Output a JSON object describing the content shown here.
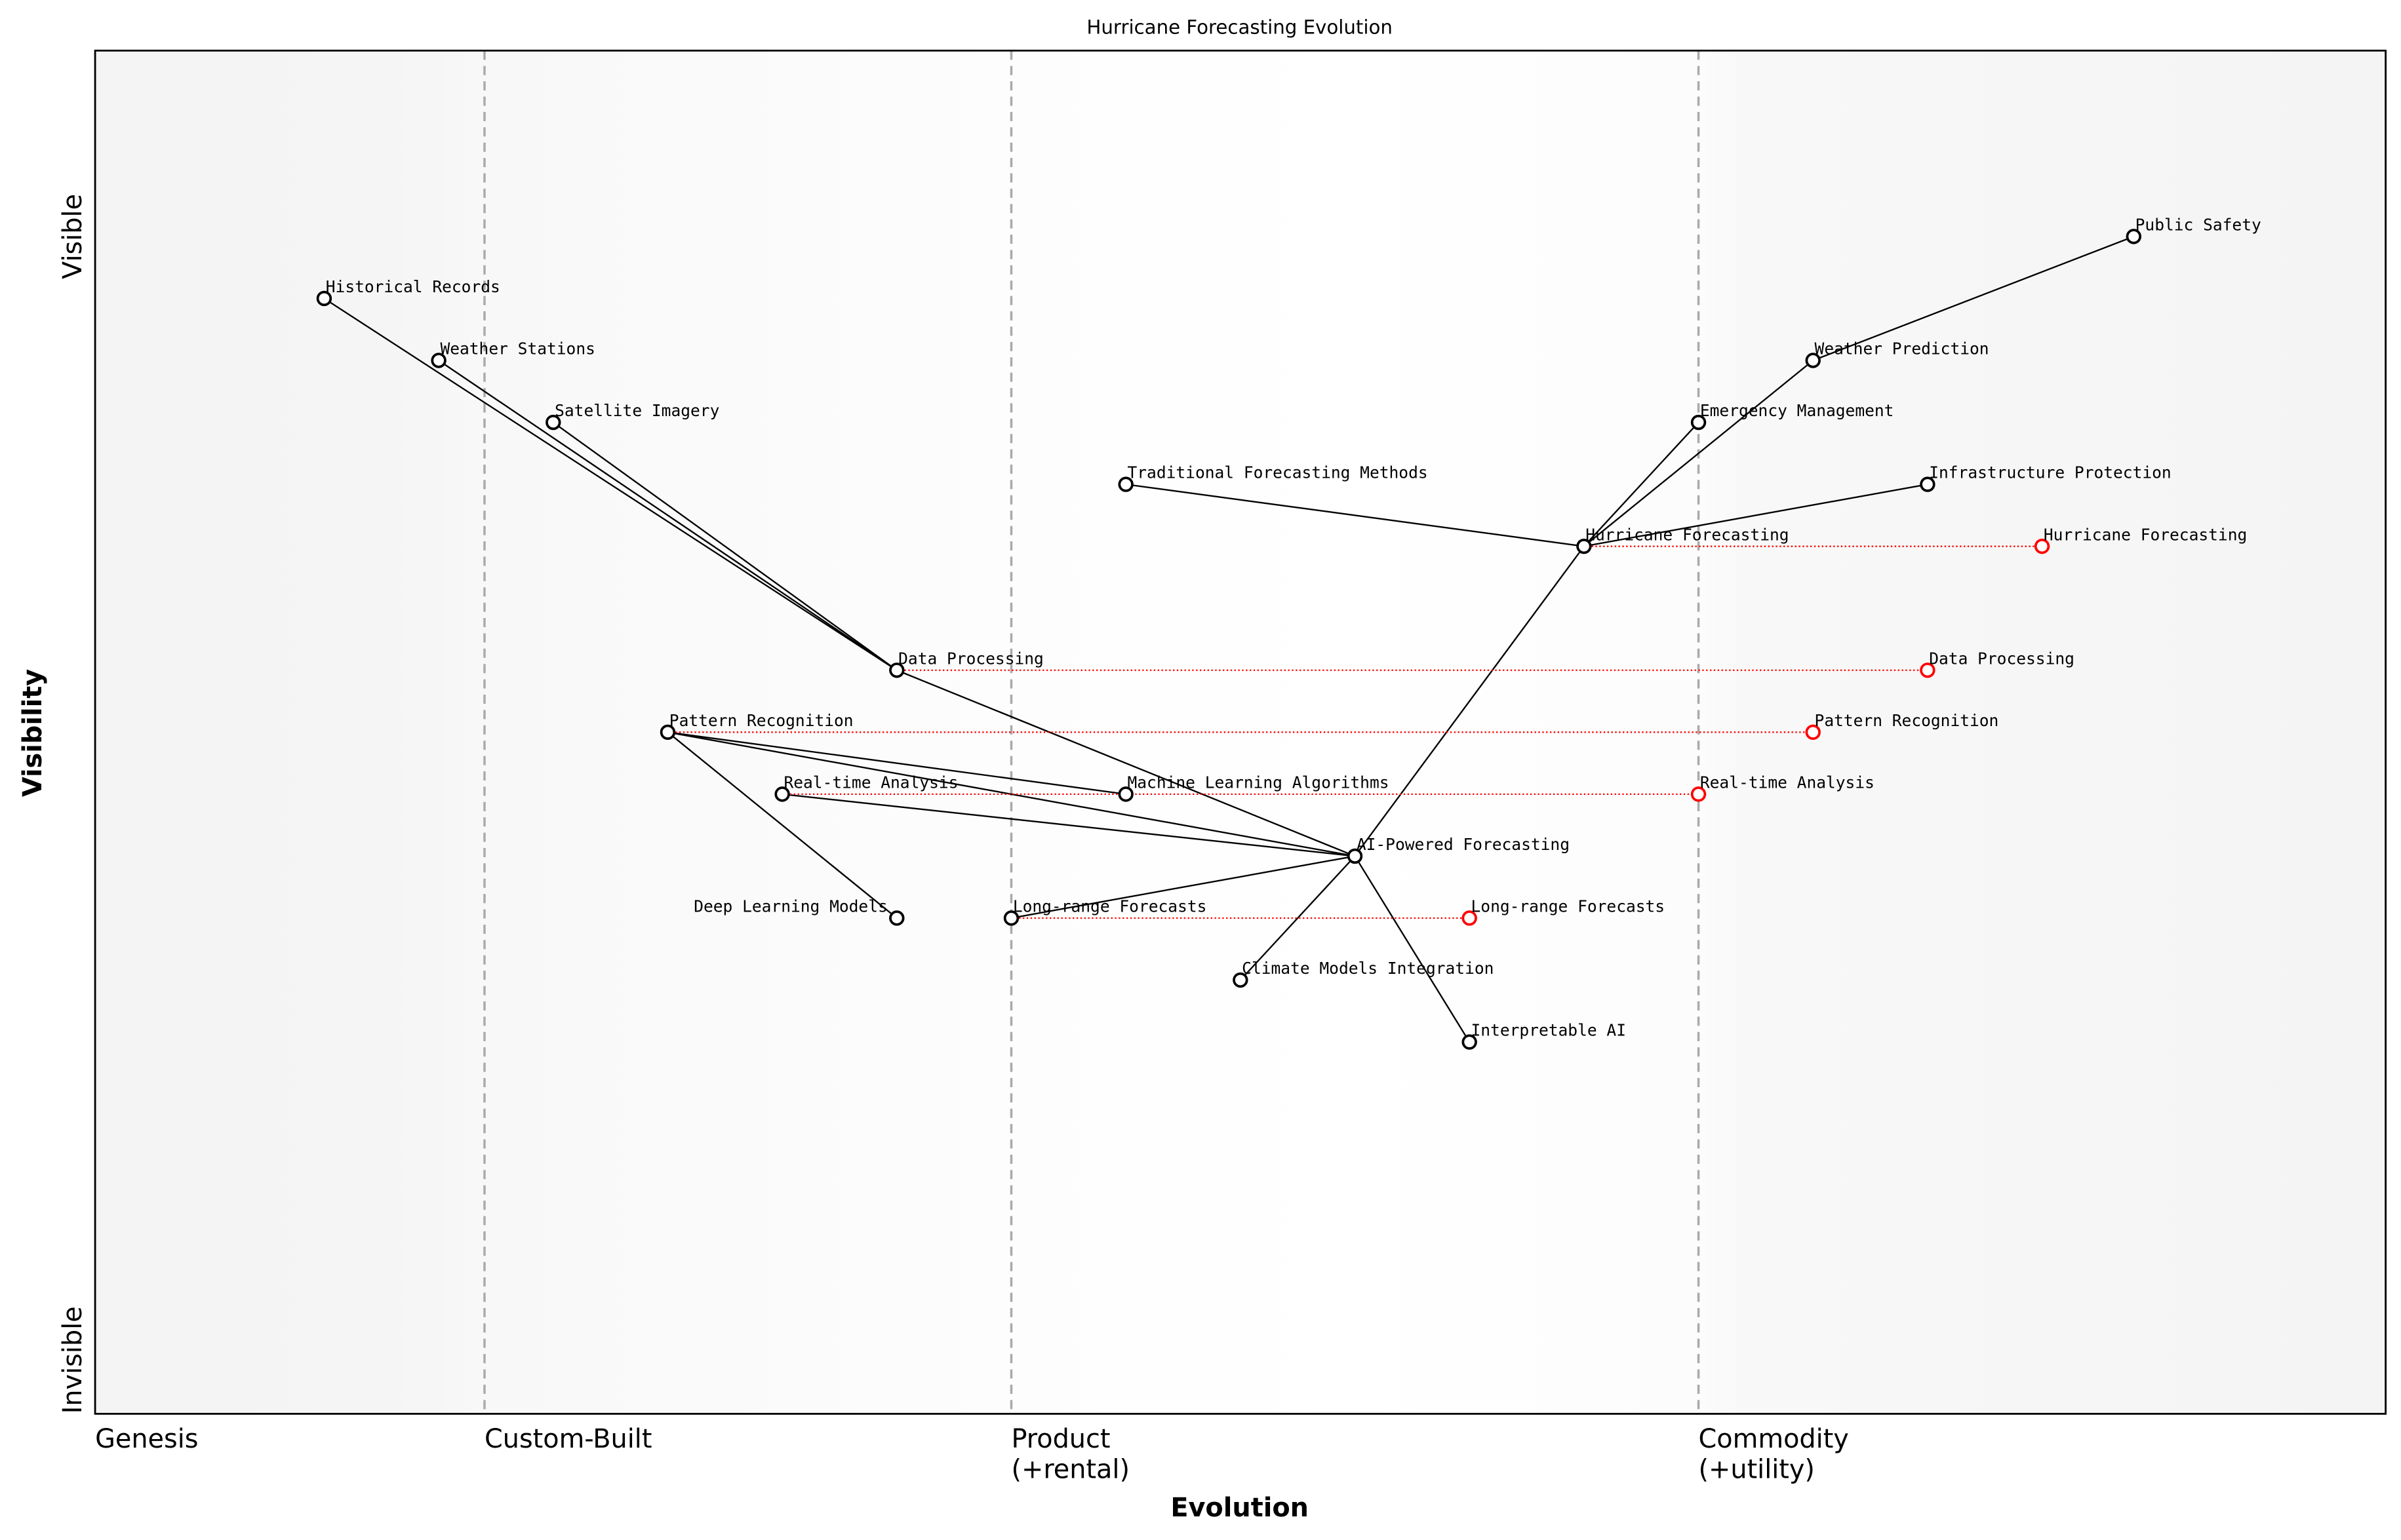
{
  "chart_data": {
    "type": "scatter",
    "subtype": "wardley-map",
    "title": "Hurricane Forecasting Evolution",
    "xlabel": "Evolution",
    "ylabel": "Visibility",
    "xlim": [
      0,
      1
    ],
    "ylim": [
      0,
      1.1
    ],
    "grid": false,
    "x_stages": [
      {
        "label": "Genesis",
        "x": 0.0
      },
      {
        "label": "Custom-Built",
        "x": 0.17
      },
      {
        "label": "Product\n(+rental)",
        "x": 0.4
      },
      {
        "label": "Commodity\n(+utility)",
        "x": 0.7
      }
    ],
    "y_ticks": [
      {
        "label": "Invisible",
        "y": 0.0
      },
      {
        "label": "Visible",
        "y": 0.95
      }
    ],
    "colors": {
      "node": "#000000",
      "evolved": "#ff0000",
      "stage_line": "#aaaaaa",
      "background_edge": "#f4f4f4",
      "background_mid": "#ffffff"
    },
    "nodes": [
      {
        "name": "Public Safety",
        "x": 0.89,
        "y": 0.95
      },
      {
        "name": "Historical Records",
        "x": 0.1,
        "y": 0.9
      },
      {
        "name": "Weather Stations",
        "x": 0.15,
        "y": 0.85
      },
      {
        "name": "Weather Prediction",
        "x": 0.75,
        "y": 0.85
      },
      {
        "name": "Satellite Imagery",
        "x": 0.2,
        "y": 0.8
      },
      {
        "name": "Emergency Management",
        "x": 0.7,
        "y": 0.8
      },
      {
        "name": "Traditional Forecasting Methods",
        "x": 0.45,
        "y": 0.75
      },
      {
        "name": "Infrastructure Protection",
        "x": 0.8,
        "y": 0.75
      },
      {
        "name": "Hurricane Forecasting",
        "x": 0.65,
        "y": 0.7
      },
      {
        "name": "Data Processing",
        "x": 0.35,
        "y": 0.6
      },
      {
        "name": "Pattern Recognition",
        "x": 0.25,
        "y": 0.55
      },
      {
        "name": "Real-time Analysis",
        "x": 0.3,
        "y": 0.5
      },
      {
        "name": "Machine Learning Algorithms",
        "x": 0.45,
        "y": 0.5
      },
      {
        "name": "AI-Powered Forecasting",
        "x": 0.55,
        "y": 0.45
      },
      {
        "name": "Deep Learning Models",
        "x": 0.35,
        "y": 0.4
      },
      {
        "name": "Long-range Forecasts",
        "x": 0.4,
        "y": 0.4
      },
      {
        "name": "Climate Models Integration",
        "x": 0.5,
        "y": 0.35
      },
      {
        "name": "Interpretable AI",
        "x": 0.6,
        "y": 0.3
      }
    ],
    "evolved": [
      {
        "name": "Hurricane Forecasting",
        "from_x": 0.65,
        "x": 0.85,
        "y": 0.7
      },
      {
        "name": "Data Processing",
        "from_x": 0.35,
        "x": 0.8,
        "y": 0.6
      },
      {
        "name": "Pattern Recognition",
        "from_x": 0.25,
        "x": 0.75,
        "y": 0.55
      },
      {
        "name": "Real-time Analysis",
        "from_x": 0.3,
        "x": 0.7,
        "y": 0.5
      },
      {
        "name": "Long-range Forecasts",
        "from_x": 0.4,
        "x": 0.6,
        "y": 0.4
      }
    ],
    "links": [
      [
        "Historical Records",
        "Data Processing"
      ],
      [
        "Weather Stations",
        "Data Processing"
      ],
      [
        "Satellite Imagery",
        "Data Processing"
      ],
      [
        "Data Processing",
        "AI-Powered Forecasting"
      ],
      [
        "Pattern Recognition",
        "Machine Learning Algorithms"
      ],
      [
        "Pattern Recognition",
        "AI-Powered Forecasting"
      ],
      [
        "Pattern Recognition",
        "Deep Learning Models"
      ],
      [
        "Real-time Analysis",
        "AI-Powered Forecasting"
      ],
      [
        "Long-range Forecasts",
        "AI-Powered Forecasting"
      ],
      [
        "AI-Powered Forecasting",
        "Climate Models Integration"
      ],
      [
        "AI-Powered Forecasting",
        "Interpretable AI"
      ],
      [
        "AI-Powered Forecasting",
        "Hurricane Forecasting"
      ],
      [
        "Traditional Forecasting Methods",
        "Hurricane Forecasting"
      ],
      [
        "Hurricane Forecasting",
        "Emergency Management"
      ],
      [
        "Hurricane Forecasting",
        "Weather Prediction"
      ],
      [
        "Hurricane Forecasting",
        "Infrastructure Protection"
      ],
      [
        "Weather Prediction",
        "Public Safety"
      ]
    ]
  }
}
